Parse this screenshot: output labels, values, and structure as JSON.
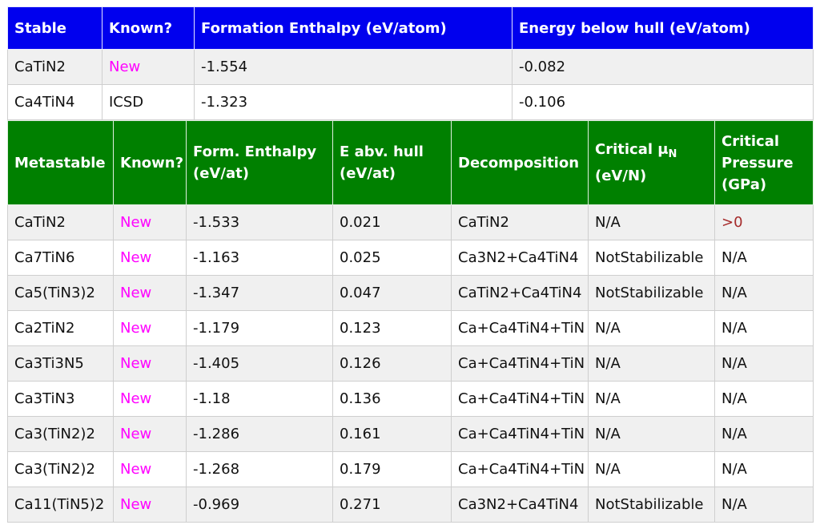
{
  "stable": {
    "headers": [
      "Stable",
      "Known?",
      "Formation Enthalpy (eV/atom)",
      "Energy below hull (eV/atom)"
    ],
    "rows": [
      {
        "compound": "CaTiN2",
        "known": "New",
        "enthalpy": "-1.554",
        "hull": "-0.082"
      },
      {
        "compound": "Ca4TiN4",
        "known": "ICSD",
        "enthalpy": "-1.323",
        "hull": "-0.106"
      }
    ]
  },
  "metastable": {
    "headers": {
      "compound": "Metastable",
      "known": "Known?",
      "enthalpy_line1": "Form. Enthalpy",
      "enthalpy_line2": "(eV/at)",
      "hull_line1": "E abv. hull",
      "hull_line2": "(eV/at)",
      "decomposition": "Decomposition",
      "mu_line1": "Critical μ",
      "mu_sub": "N",
      "mu_line2": "(eV/N)",
      "pressure_line1": "Critical",
      "pressure_line2": "Pressure",
      "pressure_line3": "(GPa)"
    },
    "rows": [
      {
        "compound": "CaTiN2",
        "known": "New",
        "enthalpy": "-1.533",
        "hull": "0.021",
        "decomposition": "CaTiN2",
        "mu": "N/A",
        "pressure": ">0"
      },
      {
        "compound": "Ca7TiN6",
        "known": "New",
        "enthalpy": "-1.163",
        "hull": "0.025",
        "decomposition": "Ca3N2+Ca4TiN4",
        "mu": "NotStabilizable",
        "pressure": "N/A"
      },
      {
        "compound": "Ca5(TiN3)2",
        "known": "New",
        "enthalpy": "-1.347",
        "hull": "0.047",
        "decomposition": "CaTiN2+Ca4TiN4",
        "mu": "NotStabilizable",
        "pressure": "N/A"
      },
      {
        "compound": "Ca2TiN2",
        "known": "New",
        "enthalpy": "-1.179",
        "hull": "0.123",
        "decomposition": "Ca+Ca4TiN4+TiN",
        "mu": "N/A",
        "pressure": "N/A"
      },
      {
        "compound": "Ca3Ti3N5",
        "known": "New",
        "enthalpy": "-1.405",
        "hull": "0.126",
        "decomposition": "Ca+Ca4TiN4+TiN",
        "mu": "N/A",
        "pressure": "N/A"
      },
      {
        "compound": "Ca3TiN3",
        "known": "New",
        "enthalpy": "-1.18",
        "hull": "0.136",
        "decomposition": "Ca+Ca4TiN4+TiN",
        "mu": "N/A",
        "pressure": "N/A"
      },
      {
        "compound": "Ca3(TiN2)2",
        "known": "New",
        "enthalpy": "-1.286",
        "hull": "0.161",
        "decomposition": "Ca+Ca4TiN4+TiN",
        "mu": "N/A",
        "pressure": "N/A"
      },
      {
        "compound": "Ca3(TiN2)2",
        "known": "New",
        "enthalpy": "-1.268",
        "hull": "0.179",
        "decomposition": "Ca+Ca4TiN4+TiN",
        "mu": "N/A",
        "pressure": "N/A"
      },
      {
        "compound": "Ca11(TiN5)2",
        "known": "New",
        "enthalpy": "-0.969",
        "hull": "0.271",
        "decomposition": "Ca3N2+Ca4TiN4",
        "mu": "NotStabilizable",
        "pressure": "N/A"
      }
    ]
  },
  "colors": {
    "stable_header": "#0000ee",
    "metastable_header": "#008000",
    "new_text": "#ff00ff",
    "pressure_positive": "#a52a2a",
    "row_shade": "#f0f0f0"
  }
}
